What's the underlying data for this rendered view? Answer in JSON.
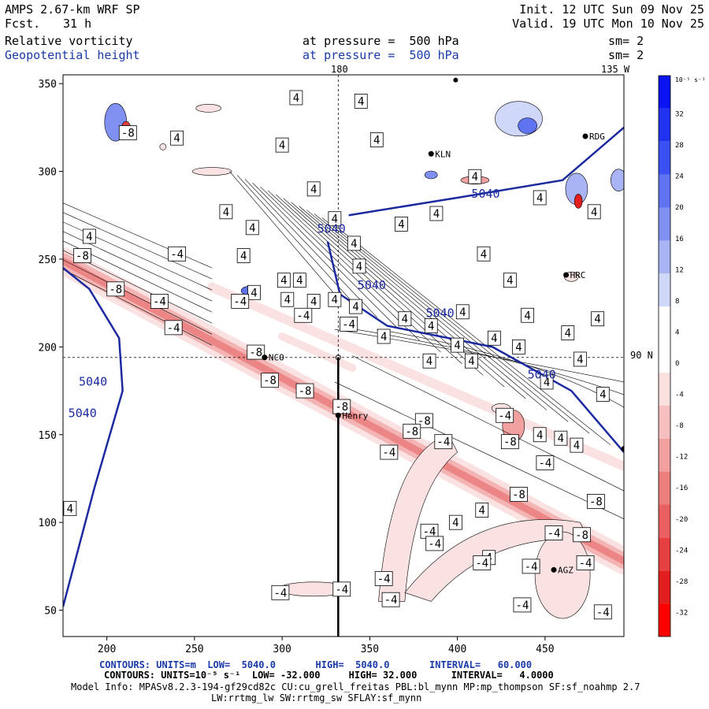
{
  "header": {
    "model": "AMPS 2.67-km WRF SP",
    "fcst_label": "Fcst.",
    "fcst_value": "31 h",
    "init": "Init. 12 UTC Sun 09 Nov 25",
    "valid": "Valid. 19 UTC Mon 10 Nov 25",
    "field1": "Relative vorticity",
    "field1_level": "at pressure =  500 hPa",
    "field1_sm": "sm= 2",
    "field2": "Geopotential height",
    "field2_level": "at pressure =  500 hPa",
    "field2_sm": "sm= 2"
  },
  "map_labels": {
    "lon_180": "180",
    "lon_135w": "135 W",
    "lat_90s": "90 N"
  },
  "stations": [
    {
      "name": "KLN"
    },
    {
      "name": "RDG"
    },
    {
      "name": "HRC"
    },
    {
      "name": "NCO"
    },
    {
      "name": "Henry"
    },
    {
      "name": "AGZ"
    }
  ],
  "footer": {
    "line1": "CONTOURS: UNITS=m  LOW=  5040.0       HIGH=  5040.0       INTERVAL=   60.000",
    "line2": "CONTOURS: UNITS=10⁻⁵ s⁻¹  LOW= -32.000     HIGH= 32.000      INTERVAL=   4.0000",
    "line3": "Model Info: MPASv8.2.3-194-gf29cd82c CU:cu_grell_freitas PBL:bl_mynn MP:mp_thompson SF:sf_noahmp 2.7",
    "line4": "LW:rrtmg_lw SW:rrtmg_sw SFLAY:sf_mynn"
  },
  "colorbar": {
    "unit": "10⁻⁵ s⁻¹",
    "labels": [
      "32",
      "28",
      "24",
      "20",
      "16",
      "12",
      "8",
      "4",
      "0",
      "-4",
      "-8",
      "-12",
      "-16",
      "-20",
      "-24",
      "-28",
      "-32"
    ],
    "colors": [
      "#0a14f0",
      "#2233f0",
      "#3a50f0",
      "#5f72f0",
      "#8090f0",
      "#a8b4f4",
      "#d0d8fa",
      "#ffffff",
      "#ffffff",
      "#fbe0e0",
      "#f6c0c0",
      "#f2a0a0",
      "#ee7f7f",
      "#ea5f5f",
      "#e63f3f",
      "#e21f1f",
      "#ff0000"
    ]
  },
  "chart_data": {
    "type": "contour",
    "xlim": [
      175,
      495
    ],
    "ylim": [
      35,
      355
    ],
    "xticks": [
      200,
      250,
      300,
      350,
      400,
      450
    ],
    "yticks": [
      50,
      100,
      150,
      200,
      250,
      300,
      350
    ],
    "height_contours": [
      {
        "label": "5040",
        "points": [
          [
            175,
            52
          ],
          [
            193,
            120
          ],
          [
            209,
            175
          ],
          [
            207,
            205
          ],
          [
            190,
            233
          ],
          [
            175,
            245
          ]
        ]
      },
      {
        "label": "5040",
        "points": [
          [
            326,
            260
          ],
          [
            333,
            230
          ],
          [
            360,
            212
          ],
          [
            420,
            200
          ],
          [
            465,
            175
          ],
          [
            495,
            140
          ]
        ]
      },
      {
        "label": "5040",
        "points": [
          [
            338,
            275
          ],
          [
            400,
            285
          ],
          [
            460,
            295
          ],
          [
            495,
            325
          ]
        ]
      }
    ],
    "height_labels": [
      {
        "text": "5040",
        "x": 184,
        "y": 178
      },
      {
        "text": "5040",
        "x": 178,
        "y": 160
      },
      {
        "text": "5040",
        "x": 320,
        "y": 265
      },
      {
        "text": "5040",
        "x": 343,
        "y": 233
      },
      {
        "text": "5040",
        "x": 382,
        "y": 217
      },
      {
        "text": "5040",
        "x": 408,
        "y": 285
      },
      {
        "text": "5040",
        "x": 440,
        "y": 182
      }
    ],
    "vort_labels": [
      {
        "v": "4",
        "x": 308,
        "y": 342
      },
      {
        "v": "4",
        "x": 345,
        "y": 340
      },
      {
        "v": "-8",
        "x": 212,
        "y": 322
      },
      {
        "v": "4",
        "x": 240,
        "y": 319
      },
      {
        "v": "4",
        "x": 300,
        "y": 315
      },
      {
        "v": "4",
        "x": 354,
        "y": 318
      },
      {
        "v": "4",
        "x": 318,
        "y": 290
      },
      {
        "v": "4",
        "x": 268,
        "y": 277
      },
      {
        "v": "4",
        "x": 330,
        "y": 273
      },
      {
        "v": "4",
        "x": 368,
        "y": 270
      },
      {
        "v": "4",
        "x": 410,
        "y": 297
      },
      {
        "v": "4",
        "x": 447,
        "y": 285
      },
      {
        "v": "4",
        "x": 478,
        "y": 277
      },
      {
        "v": "4",
        "x": 388,
        "y": 276
      },
      {
        "v": "4",
        "x": 283,
        "y": 268
      },
      {
        "v": "4",
        "x": 341,
        "y": 259
      },
      {
        "v": "4",
        "x": 190,
        "y": 263
      },
      {
        "v": "-8",
        "x": 186,
        "y": 252
      },
      {
        "v": "-4",
        "x": 240,
        "y": 253
      },
      {
        "v": "4",
        "x": 415,
        "y": 253
      },
      {
        "v": "4",
        "x": 344,
        "y": 246
      },
      {
        "v": "4",
        "x": 301,
        "y": 238
      },
      {
        "v": "4",
        "x": 310,
        "y": 238
      },
      {
        "v": "4",
        "x": 430,
        "y": 238
      },
      {
        "v": "-8",
        "x": 205,
        "y": 233
      },
      {
        "v": "-4",
        "x": 230,
        "y": 226
      },
      {
        "v": "4",
        "x": 284,
        "y": 231
      },
      {
        "v": "-4",
        "x": 276,
        "y": 226
      },
      {
        "v": "4",
        "x": 303,
        "y": 227
      },
      {
        "v": "4",
        "x": 318,
        "y": 226
      },
      {
        "v": "4",
        "x": 330,
        "y": 227
      },
      {
        "v": "4",
        "x": 342,
        "y": 223
      },
      {
        "v": "4",
        "x": 403,
        "y": 220
      },
      {
        "v": "4",
        "x": 480,
        "y": 216
      },
      {
        "v": "-4",
        "x": 238,
        "y": 211
      },
      {
        "v": "-4",
        "x": 312,
        "y": 218
      },
      {
        "v": "-4",
        "x": 338,
        "y": 213
      },
      {
        "v": "4",
        "x": 370,
        "y": 216
      },
      {
        "v": "4",
        "x": 385,
        "y": 212
      },
      {
        "v": "4",
        "x": 440,
        "y": 218
      },
      {
        "v": "4",
        "x": 421,
        "y": 205
      },
      {
        "v": "-8",
        "x": 285,
        "y": 197
      },
      {
        "v": "4",
        "x": 358,
        "y": 206
      },
      {
        "v": "4",
        "x": 400,
        "y": 201
      },
      {
        "v": "4",
        "x": 435,
        "y": 200
      },
      {
        "v": "4",
        "x": 463,
        "y": 208
      },
      {
        "v": "4",
        "x": 470,
        "y": 193
      },
      {
        "v": "4",
        "x": 384,
        "y": 192
      },
      {
        "v": "4",
        "x": 408,
        "y": 192
      },
      {
        "v": "-8",
        "x": 293,
        "y": 181
      },
      {
        "v": "4",
        "x": 451,
        "y": 180
      },
      {
        "v": "-8",
        "x": 313,
        "y": 175
      },
      {
        "v": "4",
        "x": 483,
        "y": 173
      },
      {
        "v": "-8",
        "x": 334,
        "y": 166
      },
      {
        "v": "-8",
        "x": 381,
        "y": 158
      },
      {
        "v": "-4",
        "x": 427,
        "y": 161
      },
      {
        "v": "-8",
        "x": 374,
        "y": 152
      },
      {
        "v": "4",
        "x": 447,
        "y": 150
      },
      {
        "v": "-4",
        "x": 392,
        "y": 146
      },
      {
        "v": "-8",
        "x": 430,
        "y": 146
      },
      {
        "v": "4",
        "x": 459,
        "y": 148
      },
      {
        "v": "4",
        "x": 468,
        "y": 144
      },
      {
        "v": "-4",
        "x": 361,
        "y": 140
      },
      {
        "v": "-4",
        "x": 450,
        "y": 134
      },
      {
        "v": "-8",
        "x": 435,
        "y": 116
      },
      {
        "v": "-8",
        "x": 479,
        "y": 112
      },
      {
        "v": "4",
        "x": 414,
        "y": 107
      },
      {
        "v": "4",
        "x": 399,
        "y": 100
      },
      {
        "v": "-4",
        "x": 384,
        "y": 95
      },
      {
        "v": "-4",
        "x": 455,
        "y": 94
      },
      {
        "v": "-8",
        "x": 471,
        "y": 93
      },
      {
        "v": "-4",
        "x": 387,
        "y": 88
      },
      {
        "v": "4",
        "x": 418,
        "y": 80
      },
      {
        "v": "-4",
        "x": 414,
        "y": 77
      },
      {
        "v": "-4",
        "x": 442,
        "y": 75
      },
      {
        "v": "-4",
        "x": 473,
        "y": 77
      },
      {
        "v": "4",
        "x": 179,
        "y": 108
      },
      {
        "v": "-4",
        "x": 358,
        "y": 68
      },
      {
        "v": "-4",
        "x": 334,
        "y": 62
      },
      {
        "v": "-4",
        "x": 299,
        "y": 60
      },
      {
        "v": "-4",
        "x": 362,
        "y": 56
      },
      {
        "v": "-4",
        "x": 437,
        "y": 53
      },
      {
        "v": "-4",
        "x": 483,
        "y": 49
      },
      {
        "v": "4",
        "x": 278,
        "y": 252
      }
    ],
    "station_pos": [
      [
        385,
        310
      ],
      [
        473,
        320
      ],
      [
        462,
        241
      ],
      [
        290,
        194
      ],
      [
        332,
        161
      ],
      [
        455,
        73
      ]
    ],
    "pole_x": 332,
    "pole_y": 194
  }
}
